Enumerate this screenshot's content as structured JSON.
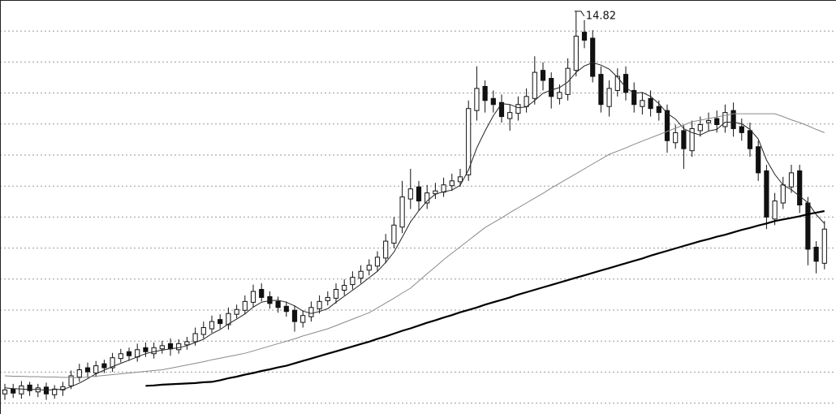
{
  "chart_data": {
    "type": "candlestick",
    "ylim": [
      4.8,
      15.1
    ],
    "up_color": "#ffffff",
    "down_color": "#111111",
    "edge_color": "#111111",
    "open": [
      5.3,
      5.42,
      5.3,
      5.52,
      5.35,
      5.47,
      5.28,
      5.4,
      5.5,
      5.72,
      5.95,
      5.82,
      6.05,
      5.95,
      6.18,
      6.35,
      6.22,
      6.45,
      6.3,
      6.42,
      6.55,
      6.4,
      6.52,
      6.6,
      6.78,
      6.92,
      7.15,
      7.02,
      7.28,
      7.38,
      7.58,
      7.9,
      7.72,
      7.6,
      7.48,
      7.38,
      7.08,
      7.22,
      7.42,
      7.62,
      7.68,
      7.88,
      8.02,
      8.18,
      8.38,
      8.48,
      8.68,
      9.05,
      9.45,
      10.15,
      10.45,
      10.05,
      10.28,
      10.32,
      10.48,
      10.58,
      10.75,
      12.35,
      12.95,
      12.65,
      12.55,
      12.15,
      12.28,
      12.45,
      12.65,
      13.35,
      13.15,
      12.65,
      12.75,
      13.35,
      14.3,
      14.15,
      13.25,
      12.45,
      12.85,
      13.25,
      12.85,
      12.45,
      12.65,
      12.45,
      12.35,
      11.55,
      11.85,
      11.35,
      11.85,
      12.05,
      12.15,
      11.95,
      12.35,
      11.95,
      11.85,
      11.45,
      10.85,
      9.65,
      10.05,
      10.45,
      10.85,
      10.05,
      8.95,
      8.55
    ],
    "high": [
      5.55,
      5.55,
      5.62,
      5.6,
      5.55,
      5.58,
      5.52,
      5.6,
      5.88,
      6.05,
      6.08,
      6.12,
      6.15,
      6.32,
      6.42,
      6.45,
      6.55,
      6.58,
      6.58,
      6.62,
      6.68,
      6.66,
      6.72,
      6.95,
      7.1,
      7.25,
      7.28,
      7.45,
      7.52,
      7.75,
      8.02,
      8.05,
      7.85,
      7.72,
      7.6,
      7.5,
      7.38,
      7.6,
      7.75,
      7.85,
      8.05,
      8.15,
      8.35,
      8.5,
      8.65,
      8.85,
      9.28,
      9.7,
      10.6,
      10.9,
      10.6,
      10.5,
      10.55,
      10.68,
      10.78,
      10.9,
      12.6,
      13.45,
      13.1,
      12.85,
      12.75,
      12.5,
      12.7,
      12.9,
      13.7,
      13.55,
      13.3,
      13.0,
      13.65,
      14.82,
      14.6,
      14.35,
      13.45,
      13.1,
      13.4,
      13.45,
      13.05,
      12.8,
      12.85,
      12.6,
      12.5,
      12.0,
      11.98,
      12.1,
      12.2,
      12.3,
      12.35,
      12.5,
      12.55,
      12.15,
      12.05,
      11.6,
      11.0,
      10.3,
      10.7,
      11.0,
      11.0,
      10.2,
      9.1,
      9.6
    ],
    "low": [
      5.15,
      5.2,
      5.18,
      5.25,
      5.22,
      5.15,
      5.18,
      5.25,
      5.42,
      5.6,
      5.7,
      5.72,
      5.82,
      5.85,
      6.08,
      6.12,
      6.1,
      6.22,
      6.18,
      6.3,
      6.25,
      6.3,
      6.4,
      6.5,
      6.68,
      6.82,
      6.92,
      6.9,
      7.18,
      7.28,
      7.45,
      7.6,
      7.42,
      7.32,
      7.22,
      6.85,
      6.95,
      7.1,
      7.3,
      7.5,
      7.55,
      7.75,
      7.9,
      8.05,
      8.25,
      8.35,
      8.55,
      8.92,
      9.3,
      9.9,
      9.85,
      9.9,
      10.15,
      10.2,
      10.35,
      10.45,
      10.6,
      12.1,
      12.3,
      12.3,
      12.05,
      11.85,
      12.1,
      12.3,
      12.5,
      12.85,
      12.4,
      12.5,
      12.6,
      13.2,
      13.9,
      13.05,
      12.3,
      12.2,
      12.7,
      12.6,
      12.3,
      12.25,
      12.2,
      12.1,
      11.3,
      11.4,
      10.9,
      11.2,
      11.7,
      11.85,
      11.8,
      11.8,
      11.7,
      11.6,
      11.2,
      10.6,
      9.4,
      9.5,
      9.9,
      10.3,
      9.8,
      8.5,
      8.3,
      8.4
    ],
    "close": [
      5.4,
      5.32,
      5.5,
      5.38,
      5.45,
      5.3,
      5.42,
      5.48,
      5.75,
      5.9,
      5.85,
      6.0,
      5.95,
      6.2,
      6.3,
      6.25,
      6.4,
      6.35,
      6.45,
      6.5,
      6.42,
      6.55,
      6.6,
      6.8,
      6.95,
      7.1,
      7.05,
      7.3,
      7.4,
      7.6,
      7.85,
      7.7,
      7.55,
      7.45,
      7.35,
      7.1,
      7.25,
      7.45,
      7.6,
      7.7,
      7.9,
      8.0,
      8.2,
      8.35,
      8.5,
      8.7,
      9.1,
      9.5,
      10.2,
      10.4,
      10.1,
      10.3,
      10.35,
      10.5,
      10.6,
      10.7,
      12.4,
      12.9,
      12.6,
      12.5,
      12.2,
      12.3,
      12.5,
      12.7,
      13.3,
      13.1,
      12.7,
      12.8,
      13.4,
      14.2,
      14.1,
      13.2,
      12.5,
      12.9,
      13.2,
      12.8,
      12.5,
      12.6,
      12.4,
      12.3,
      11.6,
      11.8,
      11.4,
      11.9,
      12.0,
      12.1,
      12.0,
      12.3,
      11.9,
      11.8,
      11.4,
      10.8,
      9.7,
      10.1,
      10.5,
      10.8,
      10.0,
      8.9,
      8.6,
      9.4
    ],
    "lines": [
      {
        "color": "#222222",
        "values": [
          5.45,
          5.43,
          5.42,
          5.41,
          5.41,
          5.39,
          5.41,
          5.41,
          5.48,
          5.57,
          5.68,
          5.8,
          5.89,
          5.98,
          6.06,
          6.14,
          6.22,
          6.3,
          6.35,
          6.39,
          6.42,
          6.45,
          6.5,
          6.58,
          6.66,
          6.8,
          6.9,
          7.04,
          7.16,
          7.29,
          7.46,
          7.58,
          7.62,
          7.63,
          7.58,
          7.49,
          7.36,
          7.3,
          7.35,
          7.42,
          7.58,
          7.73,
          7.88,
          8.03,
          8.19,
          8.35,
          8.57,
          8.83,
          9.2,
          9.58,
          9.86,
          10.1,
          10.27,
          10.33,
          10.37,
          10.49,
          10.87,
          11.42,
          11.84,
          12.22,
          12.52,
          12.5,
          12.42,
          12.44,
          12.6,
          12.78,
          12.86,
          12.92,
          13.06,
          13.3,
          13.46,
          13.54,
          13.48,
          13.38,
          13.18,
          12.92,
          12.78,
          12.8,
          12.7,
          12.52,
          12.28,
          12.14,
          11.9,
          11.8,
          11.74,
          11.84,
          11.88,
          12.06,
          12.06,
          12.02,
          11.88,
          11.64,
          11.12,
          10.76,
          10.5,
          10.38,
          10.22,
          10.06,
          9.76,
          9.54
        ]
      },
      {
        "color": "#8a8a8a",
        "values": [
          5.75,
          5.74,
          5.74,
          5.73,
          5.73,
          5.72,
          5.72,
          5.71,
          5.71,
          5.7,
          5.72,
          5.74,
          5.76,
          5.78,
          5.8,
          5.82,
          5.84,
          5.86,
          5.88,
          5.9,
          5.94,
          5.98,
          6.02,
          6.06,
          6.1,
          6.15,
          6.19,
          6.23,
          6.27,
          6.31,
          6.37,
          6.43,
          6.49,
          6.55,
          6.61,
          6.67,
          6.74,
          6.8,
          6.86,
          6.92,
          7.0,
          7.08,
          7.16,
          7.24,
          7.32,
          7.44,
          7.56,
          7.68,
          7.81,
          7.93,
          8.11,
          8.29,
          8.46,
          8.64,
          8.8,
          8.96,
          9.12,
          9.28,
          9.44,
          9.56,
          9.68,
          9.81,
          9.93,
          10.05,
          10.17,
          10.29,
          10.42,
          10.54,
          10.66,
          10.78,
          10.9,
          11.02,
          11.14,
          11.26,
          11.34,
          11.42,
          11.51,
          11.59,
          11.67,
          11.75,
          11.83,
          11.91,
          11.99,
          12.07,
          12.11,
          12.15,
          12.19,
          12.23,
          12.27,
          12.27,
          12.27,
          12.27,
          12.27,
          12.27,
          12.2,
          12.12,
          12.05,
          11.97,
          11.88,
          11.8
        ]
      },
      {
        "color": "#000000",
        "values": [
          null,
          null,
          null,
          null,
          null,
          null,
          null,
          null,
          null,
          null,
          null,
          null,
          null,
          null,
          null,
          null,
          null,
          5.5,
          5.51,
          5.53,
          5.54,
          5.55,
          5.56,
          5.57,
          5.59,
          5.6,
          5.64,
          5.69,
          5.73,
          5.78,
          5.82,
          5.87,
          5.91,
          5.96,
          6.0,
          6.06,
          6.12,
          6.18,
          6.24,
          6.3,
          6.36,
          6.42,
          6.48,
          6.54,
          6.6,
          6.67,
          6.73,
          6.8,
          6.87,
          6.93,
          7.0,
          7.07,
          7.13,
          7.2,
          7.26,
          7.33,
          7.39,
          7.45,
          7.52,
          7.58,
          7.64,
          7.7,
          7.77,
          7.83,
          7.89,
          7.95,
          8.01,
          8.07,
          8.13,
          8.19,
          8.25,
          8.31,
          8.37,
          8.43,
          8.49,
          8.55,
          8.61,
          8.67,
          8.74,
          8.8,
          8.86,
          8.92,
          8.98,
          9.04,
          9.1,
          9.15,
          9.21,
          9.26,
          9.32,
          9.38,
          9.43,
          9.49,
          9.54,
          9.6,
          9.64,
          9.68,
          9.72,
          9.77,
          9.81,
          9.85
        ]
      }
    ]
  }
}
